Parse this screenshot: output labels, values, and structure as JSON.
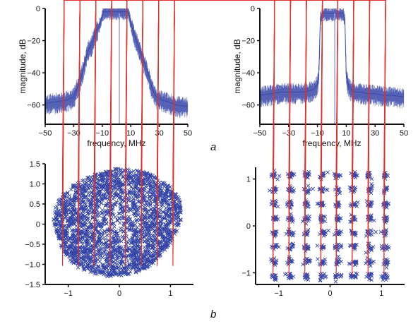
{
  "panel_labels": {
    "a": "a",
    "b": "b"
  },
  "colors": {
    "trace": "#3747a8",
    "ideal": "#e0302a",
    "axis": "#111111"
  },
  "chart_data": [
    {
      "type": "line",
      "panel": "a-left",
      "xlabel": "frequency, MHz",
      "ylabel": "magnitude, dB",
      "xlim": [
        -50,
        50
      ],
      "ylim": [
        -72,
        0
      ],
      "xticks": [
        -50,
        -30,
        -10,
        10,
        30,
        50
      ],
      "yticks": [
        0,
        -20,
        -40,
        -60
      ],
      "grid": false,
      "series": [
        {
          "x": [
            -50,
            -42,
            -35,
            -30,
            -27,
            -24,
            -22,
            -20,
            -17,
            -15,
            -13,
            -11,
            -10,
            -9,
            -8,
            -6,
            -4,
            -2,
            0,
            2,
            4,
            6,
            8,
            9,
            10,
            11,
            12,
            14,
            16,
            19,
            22,
            25,
            28,
            32,
            36,
            42,
            50
          ],
          "y": [
            -59,
            -58,
            -57,
            -55,
            -48,
            -40,
            -33,
            -26,
            -22,
            -15,
            -12,
            -8,
            -4,
            -2,
            -2,
            -2,
            -2,
            -2,
            -2,
            -2,
            -2,
            -2,
            -2,
            -4,
            -9,
            -12,
            -15,
            -20,
            -25,
            -33,
            -40,
            -50,
            -55,
            -57,
            -58,
            -60,
            -61
          ]
        }
      ],
      "markers": [
        {
          "x": 2,
          "label": ""
        }
      ]
    },
    {
      "type": "line",
      "panel": "a-right",
      "xlabel": "frequency, MHz",
      "ylabel": "magnitude, dB",
      "xlim": [
        -50,
        50
      ],
      "ylim": [
        -72,
        0
      ],
      "xticks": [
        -50,
        -30,
        -10,
        10,
        30,
        50
      ],
      "yticks": [
        0,
        -20,
        -40,
        -60
      ],
      "grid": false,
      "series": [
        {
          "x": [
            -50,
            -42,
            -35,
            -30,
            -25,
            -20,
            -15,
            -12,
            -10,
            -9,
            -8,
            -6,
            -4,
            -2,
            0,
            2,
            4,
            6,
            8,
            9,
            10,
            12,
            15,
            20,
            25,
            30,
            35,
            42,
            50
          ],
          "y": [
            -54,
            -53,
            -52,
            -52,
            -52,
            -52,
            -51,
            -50,
            -47,
            -40,
            -6,
            -3,
            -3,
            -3,
            -3,
            -3,
            -3,
            -3,
            -3,
            -6,
            -42,
            -49,
            -52,
            -52,
            -53,
            -53,
            -54,
            -54,
            -55
          ]
        }
      ],
      "markers": [
        {
          "x": 2,
          "label": ""
        }
      ]
    },
    {
      "type": "scatter",
      "panel": "b-left",
      "xlim": [
        -1.45,
        1.45
      ],
      "ylim": [
        -1.5,
        1.5
      ],
      "xticks": [
        -1,
        0,
        1
      ],
      "yticks": [
        1.5,
        1.0,
        0.5,
        0,
        -0.5,
        -1.0,
        -1.5
      ],
      "ytick_labels": [
        "1.5",
        "1.0",
        "0.5",
        "0",
        "-0.5",
        "-1.0",
        "-1.5"
      ],
      "grid": false,
      "constellation": {
        "order": 64,
        "levels": [
          -1.08,
          -0.77,
          -0.46,
          -0.15,
          0.15,
          0.46,
          0.77,
          1.08
        ]
      },
      "received": {
        "shape": "dense cloud",
        "x_extent": [
          -1.35,
          1.25
        ],
        "y_extent": [
          -1.3,
          1.38
        ]
      }
    },
    {
      "type": "scatter",
      "panel": "b-right",
      "xlim": [
        -1.45,
        1.45
      ],
      "ylim": [
        -1.25,
        1.25
      ],
      "xticks": [
        -1,
        0,
        1
      ],
      "yticks": [
        1,
        0,
        -1
      ],
      "ytick_labels": [
        "1",
        "0",
        "−1"
      ],
      "grid": false,
      "constellation": {
        "order": 64,
        "levels": [
          -1.08,
          -0.77,
          -0.46,
          -0.15,
          0.15,
          0.46,
          0.77,
          1.08
        ]
      },
      "received": {
        "shape": "tight clusters",
        "spread": 0.035
      }
    }
  ]
}
